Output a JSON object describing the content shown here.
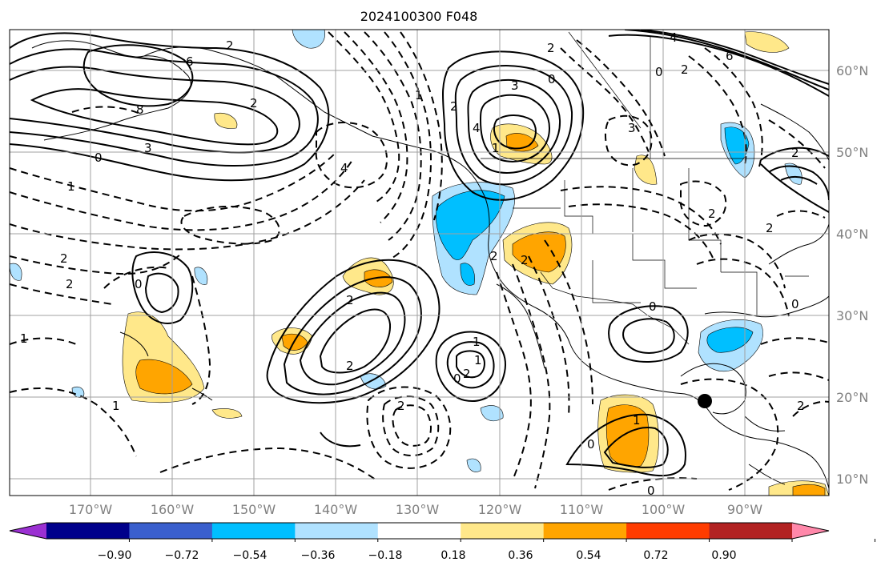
{
  "title": "2024100300 F048",
  "map": {
    "lat_labels": [
      "60°N",
      "50°N",
      "40°N",
      "30°N",
      "20°N",
      "10°N"
    ],
    "lon_labels": [
      "170°W",
      "160°W",
      "150°W",
      "140°W",
      "130°W",
      "120°W",
      "110°W",
      "100°W",
      "90°W"
    ],
    "contour_labels": [
      "6",
      "8",
      "3",
      "0",
      "2",
      "4",
      "2",
      "0",
      "2",
      "3",
      "1",
      "0",
      "2",
      "4",
      "6",
      "2",
      "2",
      "0",
      "1",
      "2",
      "2",
      "1",
      "0",
      "2",
      "2",
      "2",
      "2",
      "0",
      "1",
      "2",
      "1",
      "0",
      "1",
      "2",
      "4",
      "3",
      "2",
      "2",
      "1",
      "0",
      "2",
      "1",
      "0"
    ]
  },
  "colorbar": {
    "ticks": [
      "−0.90",
      "−0.72",
      "−0.54",
      "−0.36",
      "−0.18",
      "0.18",
      "0.36",
      "0.54",
      "0.72",
      "0.90"
    ],
    "colors": [
      "#9b30d2",
      "#00008b",
      "#3a5fcd",
      "#00bfff",
      "#b0e2ff",
      "#ffffff",
      "#ffe88a",
      "#ffa500",
      "#ff3c00",
      "#b22222",
      "#ff88aa"
    ]
  }
}
